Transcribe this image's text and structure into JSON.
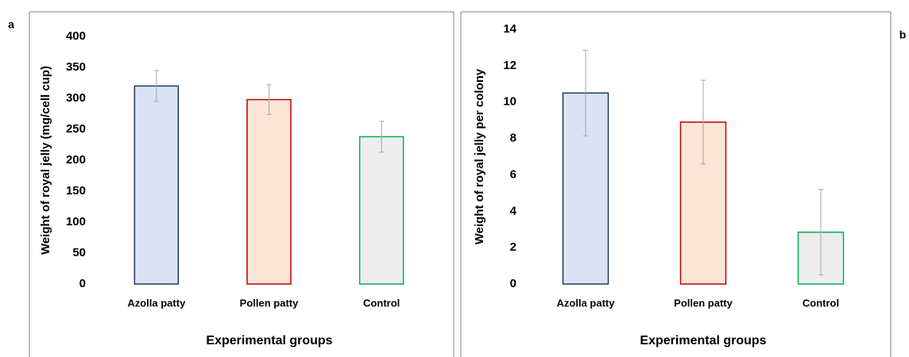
{
  "chart_data": [
    {
      "type": "bar",
      "panel": "a",
      "ylabel": "Weight of royal jelly  (mg/cell cup)",
      "xlabel": "Experimental groups",
      "categories": [
        "Azolla patty",
        "Pollen patty",
        "Control"
      ],
      "values": [
        320,
        298,
        238
      ],
      "errors": [
        25,
        24,
        25
      ],
      "colors": [
        "#dae3f3",
        "#fbe5d6",
        "#ededed"
      ],
      "edge_colors": [
        "#1f3864",
        "#c00000",
        "#00b050"
      ],
      "ylim": [
        0,
        400
      ],
      "yticks": [
        0,
        50,
        100,
        150,
        200,
        250,
        300,
        350,
        400
      ],
      "grid": false
    },
    {
      "type": "bar",
      "panel": "b",
      "ylabel": "Weight of royal jelly per colony",
      "xlabel": "Experimental groups",
      "categories": [
        "Azolla patty",
        "Pollen patty",
        "Control"
      ],
      "values": [
        10.5,
        8.9,
        2.85
      ],
      "errors": [
        2.35,
        2.3,
        2.35
      ],
      "colors": [
        "#dae3f3",
        "#fbe5d6",
        "#ededed"
      ],
      "edge_colors": [
        "#1f3864",
        "#c00000",
        "#00b050"
      ],
      "ylim": [
        0,
        14
      ],
      "yticks": [
        0,
        2,
        4,
        6,
        8,
        10,
        12,
        14
      ],
      "grid": false
    }
  ]
}
